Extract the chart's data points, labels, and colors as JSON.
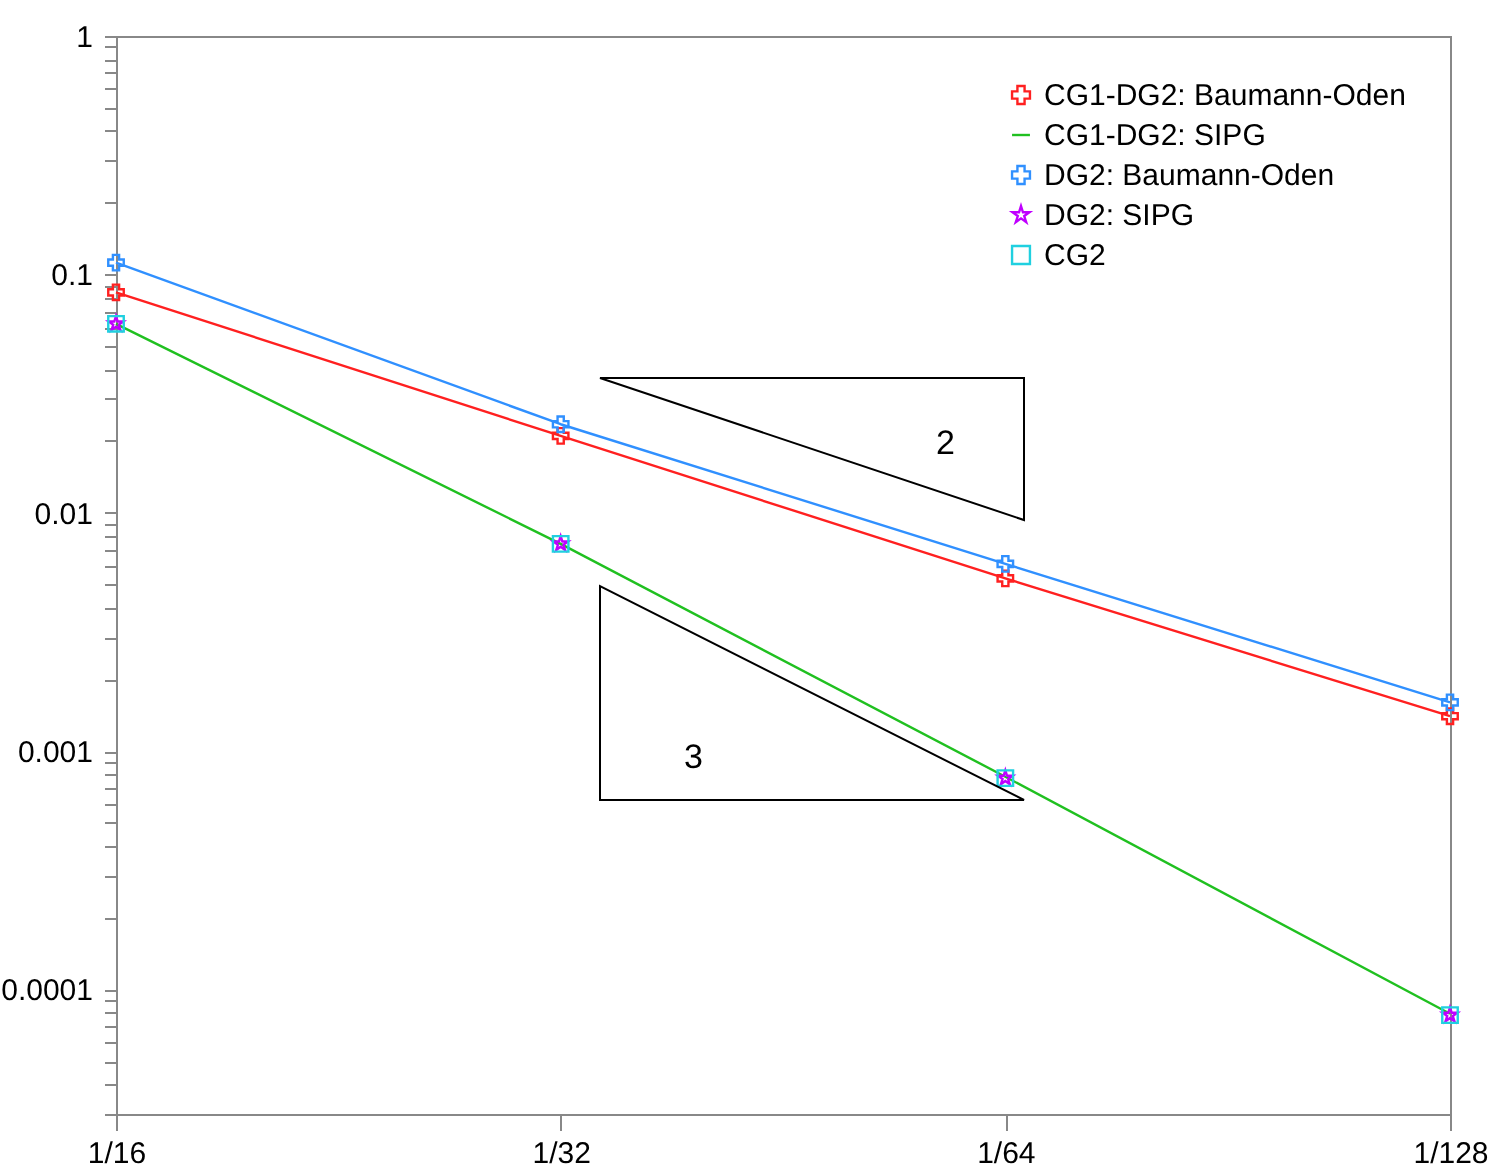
{
  "chart_data": {
    "type": "line",
    "categories": [
      "1/16",
      "1/32",
      "1/64",
      "1/128"
    ],
    "log": "y",
    "ylim": [
      3e-05,
      1
    ],
    "yticks": [
      {
        "value": 3e-05,
        "label": null
      },
      {
        "value": 4e-05,
        "label": null
      },
      {
        "value": 5e-05,
        "label": null
      },
      {
        "value": 6e-05,
        "label": null
      },
      {
        "value": 7e-05,
        "label": null
      },
      {
        "value": 8e-05,
        "label": null
      },
      {
        "value": 9e-05,
        "label": null
      },
      0.0001,
      {
        "value": 0.0002,
        "label": null
      },
      {
        "value": 0.0003,
        "label": null
      },
      {
        "value": 0.0004,
        "label": null
      },
      {
        "value": 0.0005,
        "label": null
      },
      {
        "value": 0.0006,
        "label": null
      },
      {
        "value": 0.0007,
        "label": null
      },
      {
        "value": 0.0008,
        "label": null
      },
      {
        "value": 0.0009,
        "label": null
      },
      0.001,
      {
        "value": 0.002,
        "label": null
      },
      {
        "value": 0.003,
        "label": null
      },
      {
        "value": 0.004,
        "label": null
      },
      {
        "value": 0.005,
        "label": null
      },
      {
        "value": 0.006,
        "label": null
      },
      {
        "value": 0.007,
        "label": null
      },
      {
        "value": 0.008,
        "label": null
      },
      {
        "value": 0.009,
        "label": null
      },
      0.01,
      {
        "value": 0.02,
        "label": null
      },
      {
        "value": 0.03,
        "label": null
      },
      {
        "value": 0.04,
        "label": null
      },
      {
        "value": 0.05,
        "label": null
      },
      {
        "value": 0.06,
        "label": null
      },
      {
        "value": 0.07,
        "label": null
      },
      {
        "value": 0.08,
        "label": null
      },
      {
        "value": 0.09,
        "label": null
      },
      0.1,
      {
        "value": 0.2,
        "label": null
      },
      {
        "value": 0.3,
        "label": null
      },
      {
        "value": 0.4,
        "label": null
      },
      {
        "value": 0.5,
        "label": null
      },
      {
        "value": 0.6,
        "label": null
      },
      {
        "value": 0.7,
        "label": null
      },
      {
        "value": 0.8,
        "label": null
      },
      {
        "value": 0.9,
        "label": null
      },
      1
    ],
    "legend": "top right",
    "grid": false,
    "annotations": [
      "2",
      "3"
    ],
    "series": [
      {
        "name": "CG1-DG2: Baumann-Oden",
        "marker": "cross",
        "color": "#ff2020",
        "values": [
          0.084,
          0.021,
          0.0053,
          0.0014
        ]
      },
      {
        "name": "CG1-DG2: SIPG",
        "marker": "none",
        "color": "#20c020",
        "values": [
          0.062,
          0.0074,
          0.00078,
          7.9e-05
        ]
      },
      {
        "name": "DG2: Baumann-Oden",
        "marker": "cross",
        "color": "#3090ff",
        "values": [
          0.112,
          0.0235,
          0.0061,
          0.0016
        ]
      },
      {
        "name": "DG2: SIPG",
        "type": "scatter",
        "marker": "star",
        "color": "#c000ff",
        "values": [
          0.062,
          0.0074,
          0.00077,
          7.8e-05
        ]
      },
      {
        "name": "CG2",
        "type": "scatter",
        "marker": "square",
        "color": "#20d0e0",
        "values": [
          0.062,
          0.0074,
          0.00077,
          7.8e-05
        ]
      }
    ]
  }
}
